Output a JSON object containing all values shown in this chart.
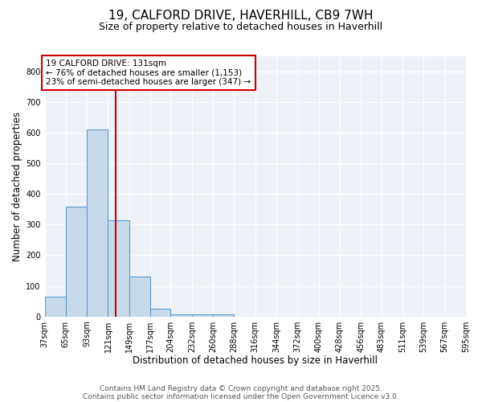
{
  "title": "19, CALFORD DRIVE, HAVERHILL, CB9 7WH",
  "subtitle": "Size of property relative to detached houses in Haverhill",
  "xlabel": "Distribution of detached houses by size in Haverhill",
  "ylabel": "Number of detached properties",
  "bar_values": [
    65,
    360,
    610,
    315,
    130,
    25,
    8,
    8,
    8,
    0,
    0,
    0,
    0,
    0,
    0,
    0,
    0,
    0,
    0,
    0
  ],
  "bin_edges": [
    37,
    65,
    93,
    121,
    149,
    177,
    204,
    232,
    260,
    288,
    316,
    344,
    372,
    400,
    428,
    456,
    483,
    511,
    539,
    567,
    595
  ],
  "bar_color": "#c8daea",
  "bar_edge_color": "#5b9bd5",
  "vline_x": 131,
  "vline_color": "#cc0000",
  "annotation_line1": "19 CALFORD DRIVE: 131sqm",
  "annotation_line2": "← 76% of detached houses are smaller (1,153)",
  "annotation_line3": "23% of semi-detached houses are larger (347) →",
  "annotation_box_color": "#cc0000",
  "ylim": [
    0,
    850
  ],
  "yticks": [
    0,
    100,
    200,
    300,
    400,
    500,
    600,
    700,
    800
  ],
  "footer1": "Contains HM Land Registry data © Crown copyright and database right 2025.",
  "footer2": "Contains public sector information licensed under the Open Government Licence v3.0.",
  "title_fontsize": 11,
  "subtitle_fontsize": 9,
  "xlabel_fontsize": 8.5,
  "ylabel_fontsize": 8.5,
  "tick_fontsize": 7,
  "annotation_fontsize": 7.5,
  "footer_fontsize": 6.5,
  "bg_color": "#ffffff",
  "plot_bg_color": "#eef2f8",
  "grid_color": "#ffffff",
  "spine_color": "#cccccc"
}
